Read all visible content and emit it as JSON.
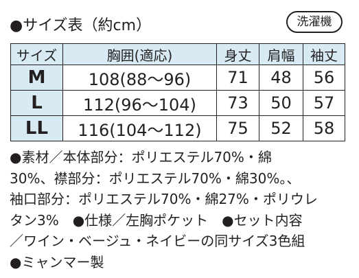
{
  "title": "●サイズ表（約cm）",
  "badge": "洗濯機",
  "table": {
    "headers": [
      "サイズ",
      "胸囲(適応)",
      "身丈",
      "肩幅",
      "袖丈"
    ],
    "rows": [
      {
        "size": "M",
        "chest": "108(88〜96)",
        "length": "71",
        "shoulder": "48",
        "sleeve": "56"
      },
      {
        "size": "L",
        "chest": "112(96〜104)",
        "length": "73",
        "shoulder": "50",
        "sleeve": "57"
      },
      {
        "size": "LL",
        "chest": "116(104〜112)",
        "length": "75",
        "shoulder": "52",
        "sleeve": "58"
      }
    ]
  },
  "description": {
    "lines": [
      "●素材／本体部分：ポリエステル70%・綿",
      "30%、襟部分：ポリエステル70%・綿30%。、",
      "袖口部分：ポリエステル70%・綿27%・ポリウレ",
      "タン3%　●仕様／左胸ポケット　●セット内容",
      "／ワイン・ベージュ・ネイビーの同サイズ3色組",
      "●ミャンマー製"
    ]
  }
}
